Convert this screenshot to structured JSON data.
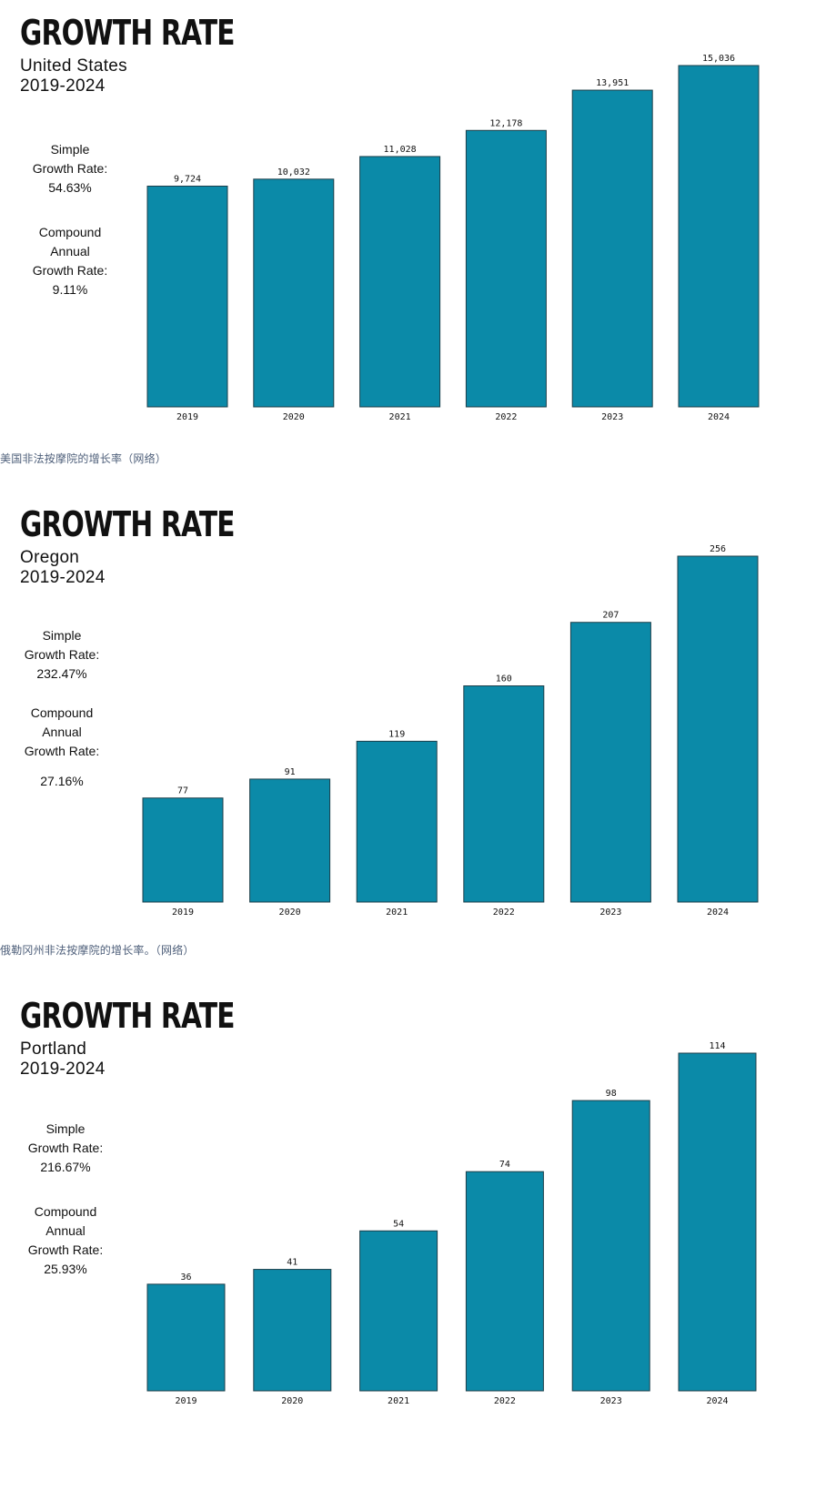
{
  "colors": {
    "bar": "#0b8aa8",
    "bar_stroke": "#1d3f4a",
    "caption": "#4e5f7a"
  },
  "chart_data": [
    {
      "type": "bar",
      "title": "GROWTH RATE",
      "subtitle": "United States",
      "period": "2019-2024",
      "categories": [
        "2019",
        "2020",
        "2021",
        "2022",
        "2023",
        "2024"
      ],
      "values": [
        9724,
        10032,
        11028,
        12178,
        13951,
        15036
      ],
      "value_labels": [
        "9,724",
        "10,032",
        "11,028",
        "12,178",
        "13,951",
        "15,036"
      ],
      "ylim": [
        0,
        15036
      ],
      "grid": false,
      "stats": {
        "simple_label_1": "Simple",
        "simple_label_2": "Growth Rate:",
        "simple_value": "54.63%",
        "compound_label_1": "Compound",
        "compound_label_2": "Annual",
        "compound_label_3": "Growth Rate:",
        "compound_value": "9.11%"
      },
      "caption": "美国非法按摩院的增长率（网络）"
    },
    {
      "type": "bar",
      "title": "GROWTH RATE",
      "subtitle": "Oregon",
      "period": "2019-2024",
      "categories": [
        "2019",
        "2020",
        "2021",
        "2022",
        "2023",
        "2024"
      ],
      "values": [
        77,
        91,
        119,
        160,
        207,
        256
      ],
      "value_labels": [
        "77",
        "91",
        "119",
        "160",
        "207",
        "256"
      ],
      "ylim": [
        0,
        256
      ],
      "grid": false,
      "stats": {
        "simple_label_1": "Simple",
        "simple_label_2": "Growth Rate:",
        "simple_value": "232.47%",
        "compound_label_1": "Compound",
        "compound_label_2": "Annual",
        "compound_label_3": "Growth Rate:",
        "compound_value": "27.16%"
      },
      "caption": "俄勒冈州非法按摩院的增长率。（网络）"
    },
    {
      "type": "bar",
      "title": "GROWTH RATE",
      "subtitle": "Portland",
      "period": "2019-2024",
      "categories": [
        "2019",
        "2020",
        "2021",
        "2022",
        "2023",
        "2024"
      ],
      "values": [
        36,
        41,
        54,
        74,
        98,
        114
      ],
      "value_labels": [
        "36",
        "41",
        "54",
        "74",
        "98",
        "114"
      ],
      "ylim": [
        0,
        114
      ],
      "grid": false,
      "stats": {
        "simple_label_1": "Simple",
        "simple_label_2": "Growth Rate:",
        "simple_value": "216.67%",
        "compound_label_1": "Compound",
        "compound_label_2": "Annual",
        "compound_label_3": "Growth Rate:",
        "compound_value": "25.93%"
      },
      "caption": ""
    }
  ]
}
